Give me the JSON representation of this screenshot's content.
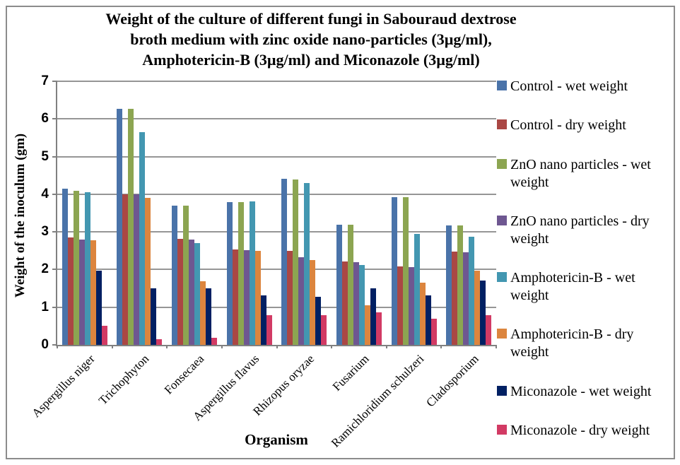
{
  "chart_data": {
    "type": "bar",
    "title": "Weight of the culture of different fungi in Sabouraud dextrose broth medium with zinc oxide nano-particles (3µg/ml), Amphotericin-B (3µg/ml) and Miconazole (3µg/ml)",
    "title_lines": [
      "Weight of the culture of different fungi in Sabouraud dextrose",
      "broth medium with zinc oxide nano-particles (3µg/ml),",
      "Amphotericin-B (3µg/ml) and Miconazole (3µg/ml)"
    ],
    "xlabel": "Organism",
    "ylabel": "Weight of the inoculum (gm)",
    "ylim": [
      0,
      7
    ],
    "yticks": [
      0,
      1,
      2,
      3,
      4,
      5,
      6,
      7
    ],
    "grid": true,
    "legend_position": "right",
    "categories": [
      "Aspergillus niger",
      "Trichophyton",
      "Fonsecaea",
      "Aspergillus flavus",
      "Rhizopus oryzae",
      "Fusarium",
      "Ramichloridium schulzeri",
      "Cladosporium"
    ],
    "series": [
      {
        "name": "Control - wet weight",
        "color": "#4A73A9",
        "values": [
          4.15,
          6.27,
          3.7,
          3.8,
          4.42,
          3.2,
          3.92,
          3.18
        ]
      },
      {
        "name": "Control - dry weight",
        "color": "#AA4744",
        "values": [
          2.85,
          4.0,
          2.82,
          2.53,
          2.5,
          2.22,
          2.08,
          2.48
        ]
      },
      {
        "name": "ZnO nano particles - wet weight",
        "color": "#8CA551",
        "values": [
          4.1,
          6.27,
          3.7,
          3.8,
          4.4,
          3.2,
          3.92,
          3.17
        ]
      },
      {
        "name": "ZnO nano particles - dry weight",
        "color": "#6E5791",
        "values": [
          2.8,
          4.0,
          2.8,
          2.52,
          2.33,
          2.2,
          2.06,
          2.46
        ]
      },
      {
        "name": "Amphotericin-B - wet weight",
        "color": "#4397B1",
        "values": [
          4.05,
          5.65,
          2.71,
          3.81,
          4.3,
          2.12,
          2.94,
          2.87
        ]
      },
      {
        "name": "Amphotericin-B - dry weight",
        "color": "#DC853E",
        "values": [
          2.77,
          3.9,
          1.69,
          2.5,
          2.25,
          1.06,
          1.65,
          1.97
        ]
      },
      {
        "name": "Miconazole - wet weight",
        "color": "#012063",
        "values": [
          1.97,
          1.5,
          1.51,
          1.31,
          1.27,
          1.5,
          1.31,
          1.7
        ]
      },
      {
        "name": "Miconazole - dry weight",
        "color": "#D23A64",
        "values": [
          0.5,
          0.15,
          0.18,
          0.78,
          0.79,
          0.86,
          0.69,
          0.79
        ]
      }
    ],
    "colors": {
      "gridline": "#969696",
      "axis": "#808080",
      "figure_border": "#8C8C8C"
    }
  }
}
